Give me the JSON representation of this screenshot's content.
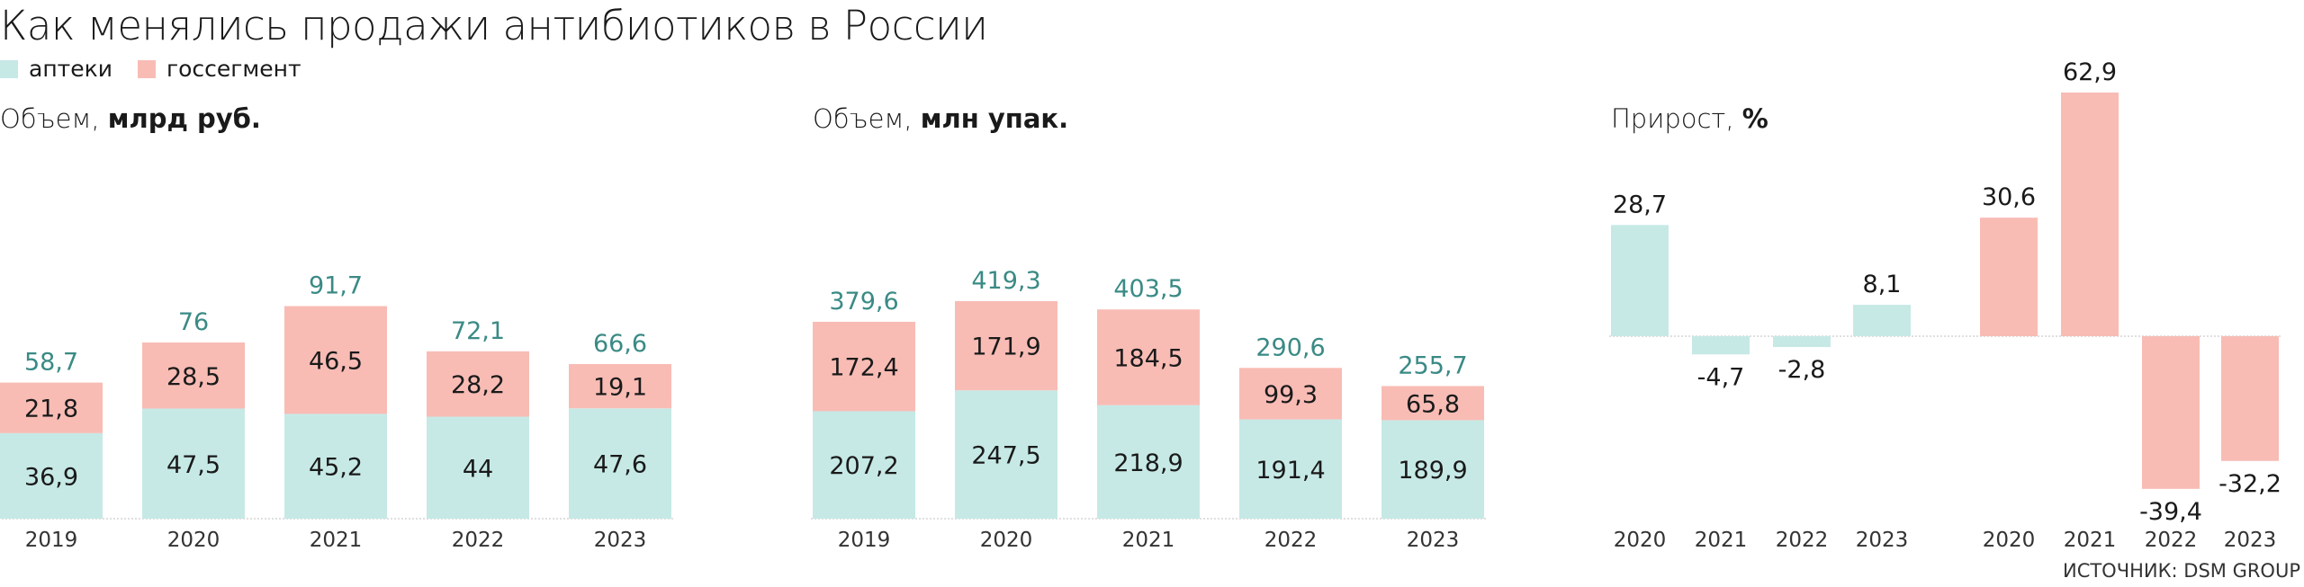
{
  "title": "Как менялись продажи антибиотиков в России",
  "legend": [
    {
      "label": "аптеки",
      "color": "#c6e9e6"
    },
    {
      "label": "госсегмент",
      "color": "#f8bcb5"
    }
  ],
  "colors": {
    "pharmacy": "#c6e9e6",
    "state": "#f8bcb5",
    "total_label": "#3a8a85",
    "axis": "#bfbfbf"
  },
  "panels": {
    "volume_rub": {
      "prefix": "Объем,",
      "unit": "млрд руб."
    },
    "volume_pack": {
      "prefix": "Объем,",
      "unit": "млн упак."
    },
    "growth": {
      "prefix": "Прирост,",
      "unit": "%"
    }
  },
  "source": "ИСТОЧНИК: DSM GROUP",
  "chart_data": [
    {
      "type": "bar",
      "stacked": true,
      "categories": [
        "2019",
        "2020",
        "2021",
        "2022",
        "2023"
      ],
      "series": [
        {
          "name": "аптеки",
          "values": [
            36.9,
            47.5,
            45.2,
            44,
            47.6
          ],
          "labels": [
            "36,9",
            "47,5",
            "45,2",
            "44",
            "47,6"
          ]
        },
        {
          "name": "госсегмент",
          "values": [
            21.8,
            28.5,
            46.5,
            28.2,
            19.1
          ],
          "labels": [
            "21,8",
            "28,5",
            "46,5",
            "28,2",
            "19,1"
          ]
        }
      ],
      "totals": [
        58.7,
        76,
        91.7,
        72.1,
        66.6
      ],
      "total_labels": [
        "58,7",
        "76",
        "91,7",
        "72,1",
        "66,6"
      ],
      "ylim": [
        0,
        95
      ]
    },
    {
      "type": "bar",
      "stacked": true,
      "categories": [
        "2019",
        "2020",
        "2021",
        "2022",
        "2023"
      ],
      "series": [
        {
          "name": "аптеки",
          "values": [
            207.2,
            247.5,
            218.9,
            191.4,
            189.9
          ],
          "labels": [
            "207,2",
            "247,5",
            "218,9",
            "191,4",
            "189,9"
          ]
        },
        {
          "name": "госсегмент",
          "values": [
            172.4,
            171.9,
            184.5,
            99.3,
            65.8
          ],
          "labels": [
            "172,4",
            "171,9",
            "184,5",
            "99,3",
            "65,8"
          ]
        }
      ],
      "totals": [
        379.6,
        419.3,
        403.5,
        290.6,
        255.7
      ],
      "total_labels": [
        "379,6",
        "419,3",
        "403,5",
        "290,6",
        "255,7"
      ],
      "ylim": [
        0,
        435
      ]
    },
    {
      "type": "bar",
      "categories": [
        "2020",
        "2021",
        "2022",
        "2023"
      ],
      "series": [
        {
          "name": "аптеки",
          "values": [
            28.7,
            -4.7,
            -2.8,
            8.1
          ],
          "labels": [
            "28,7",
            "-4,7",
            "-2,8",
            "8,1"
          ]
        },
        {
          "name": "госсегмент",
          "values": [
            30.6,
            62.9,
            -39.4,
            -32.2
          ],
          "labels": [
            "30,6",
            "62,9",
            "-39,4",
            "-32,2"
          ]
        }
      ],
      "ylim": [
        -42,
        63
      ]
    }
  ]
}
